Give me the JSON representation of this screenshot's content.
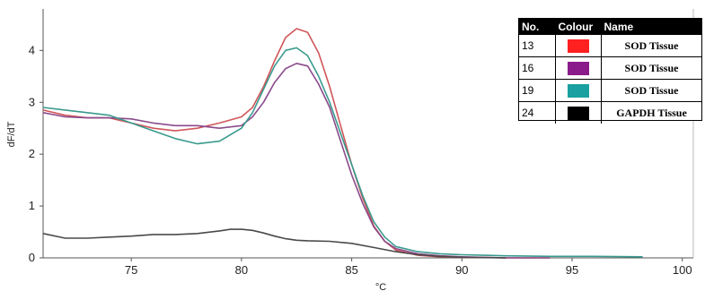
{
  "chart_data": {
    "type": "line",
    "title": "",
    "xlabel": "°C",
    "ylabel": "dF/dT",
    "xlim": [
      71,
      100.5
    ],
    "ylim": [
      0,
      4.8
    ],
    "xticks": [
      75,
      80,
      85,
      90,
      95,
      100
    ],
    "yticks": [
      0,
      1,
      2,
      3,
      4
    ],
    "grid": false,
    "legend": {
      "position": "top-right",
      "headers": [
        "No.",
        "Colour",
        "Name"
      ],
      "entries": [
        {
          "no": "13",
          "color": "#ff2020",
          "name": "SOD Tissue"
        },
        {
          "no": "16",
          "color": "#8b1a8b",
          "name": "SOD Tissue"
        },
        {
          "no": "19",
          "color": "#1aa0a0",
          "name": "SOD Tissue"
        },
        {
          "no": "24",
          "color": "#000000",
          "name": "GAPDH Tissue"
        }
      ]
    },
    "series": [
      {
        "no": "13",
        "color": "#d0565a",
        "x": [
          71,
          72,
          73,
          74,
          75,
          76,
          77,
          78,
          79,
          80,
          80.5,
          81,
          81.5,
          82,
          82.5,
          83,
          83.5,
          84,
          84.5,
          85,
          85.5,
          86,
          86.5,
          87,
          88,
          89,
          90,
          91,
          92,
          94
        ],
        "y": [
          2.85,
          2.75,
          2.7,
          2.7,
          2.6,
          2.5,
          2.45,
          2.5,
          2.6,
          2.72,
          2.9,
          3.3,
          3.8,
          4.25,
          4.42,
          4.35,
          3.95,
          3.3,
          2.55,
          1.8,
          1.15,
          0.62,
          0.32,
          0.15,
          0.05,
          0.02,
          0.01,
          0.01,
          0.0,
          0.0
        ]
      },
      {
        "no": "16",
        "color": "#8b4a8b",
        "x": [
          71,
          72,
          73,
          74,
          75,
          76,
          77,
          78,
          79,
          80,
          80.5,
          81,
          81.5,
          82,
          82.5,
          83,
          83.5,
          84,
          84.5,
          85,
          85.5,
          86,
          86.5,
          87,
          88,
          89,
          90,
          91,
          92,
          94
        ],
        "y": [
          2.8,
          2.72,
          2.7,
          2.7,
          2.68,
          2.6,
          2.55,
          2.55,
          2.5,
          2.55,
          2.72,
          3.0,
          3.38,
          3.65,
          3.75,
          3.7,
          3.35,
          2.9,
          2.25,
          1.6,
          1.05,
          0.6,
          0.32,
          0.18,
          0.08,
          0.04,
          0.02,
          0.01,
          0.0,
          0.0
        ]
      },
      {
        "no": "19",
        "color": "#3a9a8e",
        "x": [
          71,
          72,
          73,
          74,
          75,
          76,
          77,
          78,
          79,
          80,
          80.5,
          81,
          81.5,
          82,
          82.5,
          83,
          83.5,
          84,
          84.5,
          85,
          85.5,
          86,
          86.5,
          87,
          88,
          89,
          90,
          91,
          92,
          94,
          96,
          98.2
        ],
        "y": [
          2.9,
          2.85,
          2.8,
          2.75,
          2.6,
          2.45,
          2.3,
          2.2,
          2.25,
          2.5,
          2.8,
          3.25,
          3.7,
          4.0,
          4.05,
          3.9,
          3.5,
          3.0,
          2.4,
          1.8,
          1.2,
          0.7,
          0.4,
          0.22,
          0.12,
          0.08,
          0.06,
          0.05,
          0.04,
          0.03,
          0.03,
          0.02
        ]
      },
      {
        "no": "24",
        "color": "#4a4a4a",
        "x": [
          71,
          72,
          73,
          74,
          75,
          76,
          77,
          78,
          79,
          79.5,
          80,
          80.5,
          81,
          81.5,
          82,
          82.5,
          83,
          84,
          85,
          86,
          87,
          88,
          89,
          90,
          92
        ],
        "y": [
          0.47,
          0.38,
          0.38,
          0.4,
          0.42,
          0.45,
          0.45,
          0.47,
          0.52,
          0.55,
          0.55,
          0.53,
          0.48,
          0.42,
          0.37,
          0.34,
          0.33,
          0.32,
          0.28,
          0.2,
          0.12,
          0.06,
          0.03,
          0.01,
          0.0
        ]
      }
    ]
  }
}
